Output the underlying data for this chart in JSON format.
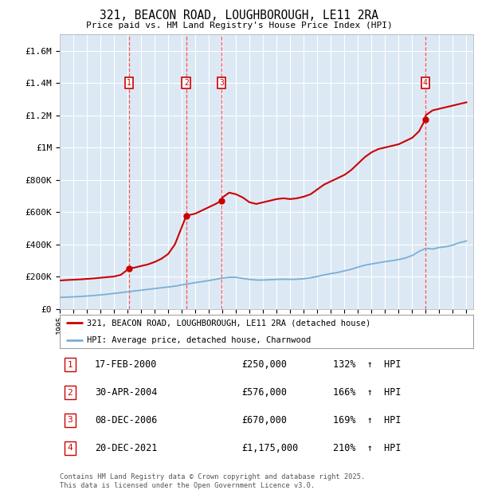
{
  "title": "321, BEACON ROAD, LOUGHBOROUGH, LE11 2RA",
  "subtitle": "Price paid vs. HM Land Registry's House Price Index (HPI)",
  "plot_background": "#dce9f5",
  "ylim": [
    0,
    1700000
  ],
  "xlim_start": 1995.0,
  "xlim_end": 2025.5,
  "yticks": [
    0,
    200000,
    400000,
    600000,
    800000,
    1000000,
    1200000,
    1400000,
    1600000
  ],
  "ytick_labels": [
    "£0",
    "£200K",
    "£400K",
    "£600K",
    "£800K",
    "£1M",
    "£1.2M",
    "£1.4M",
    "£1.6M"
  ],
  "xticks": [
    1995,
    1996,
    1997,
    1998,
    1999,
    2000,
    2001,
    2002,
    2003,
    2004,
    2005,
    2006,
    2007,
    2008,
    2009,
    2010,
    2011,
    2012,
    2013,
    2014,
    2015,
    2016,
    2017,
    2018,
    2019,
    2020,
    2021,
    2022,
    2023,
    2024,
    2025
  ],
  "sales": [
    {
      "num": 1,
      "year": 2000.12,
      "price": 250000,
      "label": "17-FEB-2000",
      "price_str": "£250,000",
      "pct": "132%",
      "direction": "↑"
    },
    {
      "num": 2,
      "year": 2004.33,
      "price": 576000,
      "label": "30-APR-2004",
      "price_str": "£576,000",
      "pct": "166%",
      "direction": "↑"
    },
    {
      "num": 3,
      "year": 2006.93,
      "price": 670000,
      "label": "08-DEC-2006",
      "price_str": "£670,000",
      "pct": "169%",
      "direction": "↑"
    },
    {
      "num": 4,
      "year": 2021.97,
      "price": 1175000,
      "label": "20-DEC-2021",
      "price_str": "£1,175,000",
      "pct": "210%",
      "direction": "↑"
    }
  ],
  "red_line_color": "#cc0000",
  "blue_line_color": "#7aaed6",
  "vline_color": "#ff5555",
  "marker_box_color": "#cc0000",
  "legend_label_red": "321, BEACON ROAD, LOUGHBOROUGH, LE11 2RA (detached house)",
  "legend_label_blue": "HPI: Average price, detached house, Charnwood",
  "footer": "Contains HM Land Registry data © Crown copyright and database right 2025.\nThis data is licensed under the Open Government Licence v3.0.",
  "red_x": [
    1995.0,
    1995.5,
    1996.0,
    1996.5,
    1997.0,
    1997.5,
    1998.0,
    1998.5,
    1999.0,
    1999.5,
    2000.12,
    2000.5,
    2001.0,
    2001.5,
    2002.0,
    2002.5,
    2003.0,
    2003.5,
    2004.33,
    2004.5,
    2005.0,
    2005.5,
    2006.0,
    2006.5,
    2006.93,
    2007.0,
    2007.5,
    2008.0,
    2008.5,
    2009.0,
    2009.5,
    2010.0,
    2010.5,
    2011.0,
    2011.5,
    2012.0,
    2012.5,
    2013.0,
    2013.5,
    2014.0,
    2014.5,
    2015.0,
    2015.5,
    2016.0,
    2016.5,
    2017.0,
    2017.5,
    2018.0,
    2018.5,
    2019.0,
    2019.5,
    2020.0,
    2020.5,
    2021.0,
    2021.5,
    2021.97,
    2022.0,
    2022.5,
    2023.0,
    2023.5,
    2024.0,
    2024.5,
    2025.0
  ],
  "red_y": [
    175000,
    178000,
    180000,
    182000,
    185000,
    188000,
    192000,
    196000,
    200000,
    210000,
    250000,
    255000,
    265000,
    275000,
    290000,
    310000,
    340000,
    400000,
    576000,
    580000,
    590000,
    610000,
    630000,
    650000,
    670000,
    690000,
    720000,
    710000,
    690000,
    660000,
    650000,
    660000,
    670000,
    680000,
    685000,
    680000,
    685000,
    695000,
    710000,
    740000,
    770000,
    790000,
    810000,
    830000,
    860000,
    900000,
    940000,
    970000,
    990000,
    1000000,
    1010000,
    1020000,
    1040000,
    1060000,
    1100000,
    1175000,
    1200000,
    1230000,
    1240000,
    1250000,
    1260000,
    1270000,
    1280000
  ],
  "blue_x": [
    1995.0,
    1995.5,
    1996.0,
    1996.5,
    1997.0,
    1997.5,
    1998.0,
    1998.5,
    1999.0,
    1999.5,
    2000.0,
    2000.5,
    2001.0,
    2001.5,
    2002.0,
    2002.5,
    2003.0,
    2003.5,
    2004.0,
    2004.5,
    2005.0,
    2005.5,
    2006.0,
    2006.5,
    2007.0,
    2007.5,
    2008.0,
    2008.5,
    2009.0,
    2009.5,
    2010.0,
    2010.5,
    2011.0,
    2011.5,
    2012.0,
    2012.5,
    2013.0,
    2013.5,
    2014.0,
    2014.5,
    2015.0,
    2015.5,
    2016.0,
    2016.5,
    2017.0,
    2017.5,
    2018.0,
    2018.5,
    2019.0,
    2019.5,
    2020.0,
    2020.5,
    2021.0,
    2021.5,
    2022.0,
    2022.5,
    2023.0,
    2023.5,
    2024.0,
    2024.5,
    2025.0
  ],
  "blue_y": [
    70000,
    72000,
    74000,
    76000,
    79000,
    82000,
    86000,
    90000,
    95000,
    100000,
    105000,
    110000,
    115000,
    120000,
    125000,
    130000,
    135000,
    140000,
    148000,
    155000,
    162000,
    168000,
    175000,
    182000,
    190000,
    195000,
    195000,
    188000,
    182000,
    178000,
    178000,
    180000,
    182000,
    183000,
    182000,
    183000,
    186000,
    192000,
    200000,
    210000,
    218000,
    225000,
    235000,
    245000,
    258000,
    270000,
    278000,
    285000,
    292000,
    298000,
    305000,
    315000,
    330000,
    355000,
    375000,
    370000,
    380000,
    385000,
    395000,
    410000,
    420000
  ]
}
